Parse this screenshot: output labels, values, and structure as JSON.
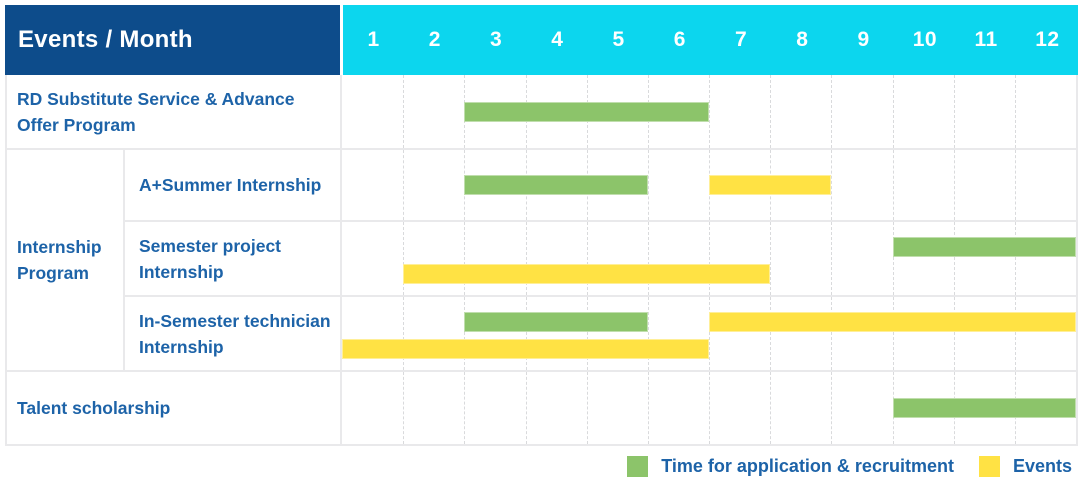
{
  "header": {
    "title": "Events / Month",
    "months": [
      "1",
      "2",
      "3",
      "4",
      "5",
      "6",
      "7",
      "8",
      "9",
      "10",
      "11",
      "12"
    ]
  },
  "legend": {
    "items": [
      {
        "series": "application",
        "label": "Time for application & recruitment"
      },
      {
        "series": "events",
        "label": "Events"
      }
    ]
  },
  "colors": {
    "header_bg": "#0d4c8b",
    "months_bg": "#0cd6ee",
    "label_text": "#1d63a8",
    "grid_line": "#e9e9eb",
    "dashed_line": "#d9dadc"
  },
  "chart_data": {
    "type": "gantt",
    "title": "Events / Month",
    "x_axis": {
      "unit": "month",
      "ticks": [
        "1",
        "2",
        "3",
        "4",
        "5",
        "6",
        "7",
        "8",
        "9",
        "10",
        "11",
        "12"
      ],
      "range": [
        1,
        12
      ]
    },
    "series_colors": {
      "application": "#8cc46a",
      "events": "#ffe244"
    },
    "series_labels": {
      "application": "Time for application & recruitment",
      "events": "Events"
    },
    "rows": [
      {
        "label": "RD Substitute Service & Advance Offer Program",
        "group": "",
        "lines": [
          [
            {
              "series": "application",
              "start_month": 3,
              "end_month": 6
            }
          ]
        ]
      },
      {
        "label": "A+Summer Internship",
        "group": "Internship Program",
        "lines": [
          [
            {
              "series": "application",
              "start_month": 3,
              "end_month": 5
            },
            {
              "series": "events",
              "start_month": 7,
              "end_month": 8
            }
          ]
        ]
      },
      {
        "label": "Semester project Internship",
        "group": "Internship Program",
        "lines": [
          [
            {
              "series": "application",
              "start_month": 10,
              "end_month": 12
            }
          ],
          [
            {
              "series": "events",
              "start_month": 2,
              "end_month": 7
            }
          ]
        ]
      },
      {
        "label": "In-Semester technician Internship",
        "group": "Internship Program",
        "lines": [
          [
            {
              "series": "application",
              "start_month": 3,
              "end_month": 5
            },
            {
              "series": "events",
              "start_month": 7,
              "end_month": 12
            }
          ],
          [
            {
              "series": "events",
              "start_month": 1,
              "end_month": 6
            }
          ]
        ]
      },
      {
        "label": "Talent scholarship",
        "group": "",
        "lines": [
          [
            {
              "series": "application",
              "start_month": 10,
              "end_month": 12
            }
          ]
        ]
      }
    ]
  }
}
